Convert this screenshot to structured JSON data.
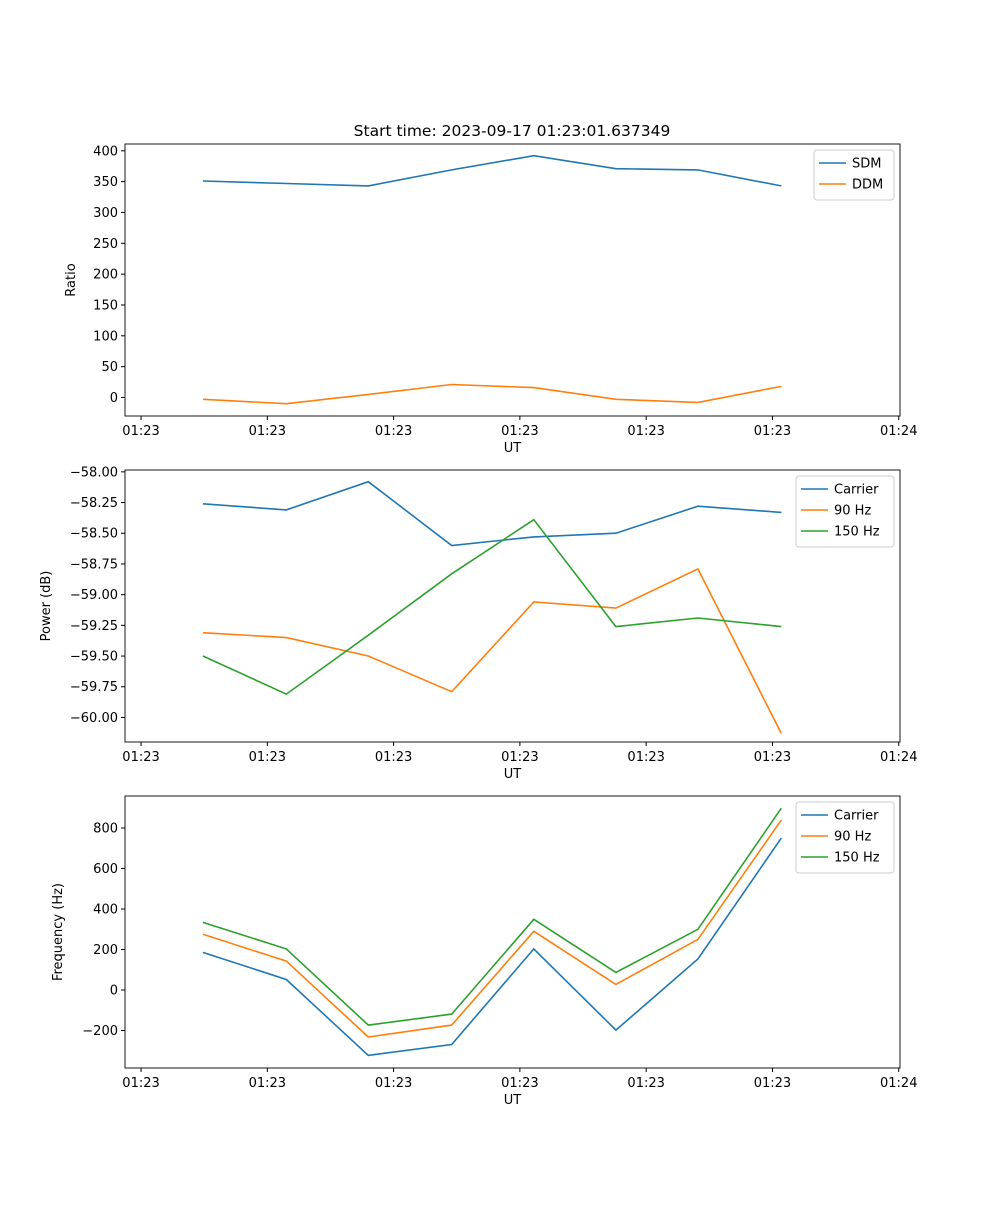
{
  "chart_data": [
    {
      "type": "line",
      "title": "Start time: 2023-09-17 01:23:01.637349",
      "xlabel": "UT",
      "ylabel": "Ratio",
      "x_unit": "seconds after 01:23:00",
      "x": [
        4.9,
        11.5,
        18.0,
        24.6,
        31.1,
        37.6,
        44.1,
        50.7
      ],
      "xlim": [
        -1.27,
        60.1
      ],
      "xticks": [
        0,
        10,
        20,
        30,
        40,
        50,
        60
      ],
      "xtick_labels": [
        "01:23",
        "01:23",
        "01:23",
        "01:23",
        "01:23",
        "01:23",
        "01:24"
      ],
      "ylim": [
        -30,
        411
      ],
      "yticks": [
        0,
        50,
        100,
        150,
        200,
        250,
        300,
        350,
        400
      ],
      "ytick_labels": [
        "0",
        "50",
        "100",
        "150",
        "200",
        "250",
        "300",
        "350",
        "400"
      ],
      "legend": "top-right",
      "series": [
        {
          "name": "SDM",
          "color": "#1f77b4",
          "values": [
            351,
            347,
            343,
            369,
            392,
            371,
            369,
            343
          ]
        },
        {
          "name": "DDM",
          "color": "#ff7f0e",
          "values": [
            -3,
            -10,
            5,
            21,
            16,
            -3,
            -8,
            18
          ]
        }
      ]
    },
    {
      "type": "line",
      "xlabel": "UT",
      "ylabel": "Power (dB)",
      "x": [
        4.9,
        11.5,
        18.0,
        24.6,
        31.1,
        37.6,
        44.1,
        50.7
      ],
      "xlim": [
        -1.27,
        60.1
      ],
      "xticks": [
        0,
        10,
        20,
        30,
        40,
        50,
        60
      ],
      "xtick_labels": [
        "01:23",
        "01:23",
        "01:23",
        "01:23",
        "01:23",
        "01:23",
        "01:24"
      ],
      "ylim": [
        -60.2,
        -57.985
      ],
      "yticks": [
        -60.0,
        -59.75,
        -59.5,
        -59.25,
        -59.0,
        -58.75,
        -58.5,
        -58.25,
        -58.0
      ],
      "ytick_labels": [
        "−60.00",
        "−59.75",
        "−59.50",
        "−59.25",
        "−59.00",
        "−58.75",
        "−58.50",
        "−58.25",
        "−58.00"
      ],
      "legend": "top-right",
      "series": [
        {
          "name": "Carrier",
          "color": "#1f77b4",
          "values": [
            -58.26,
            -58.31,
            -58.08,
            -58.6,
            -58.53,
            -58.5,
            -58.28,
            -58.33
          ]
        },
        {
          "name": "90 Hz",
          "color": "#ff7f0e",
          "values": [
            -59.31,
            -59.35,
            -59.5,
            -59.79,
            -59.06,
            -59.11,
            -58.79,
            -60.13
          ]
        },
        {
          "name": "150 Hz",
          "color": "#2ca02c",
          "values": [
            -59.5,
            -59.81,
            -59.33,
            -58.83,
            -58.39,
            -59.26,
            -59.19,
            -59.26
          ]
        }
      ]
    },
    {
      "type": "line",
      "xlabel": "UT",
      "ylabel": "Frequency (Hz)",
      "x": [
        4.9,
        11.5,
        18.0,
        24.6,
        31.1,
        37.6,
        44.1,
        50.7
      ],
      "xlim": [
        -1.27,
        60.1
      ],
      "xticks": [
        0,
        10,
        20,
        30,
        40,
        50,
        60
      ],
      "xtick_labels": [
        "01:23",
        "01:23",
        "01:23",
        "01:23",
        "01:23",
        "01:23",
        "01:24"
      ],
      "ylim": [
        -385,
        958
      ],
      "yticks": [
        -200,
        0,
        200,
        400,
        600,
        800
      ],
      "ytick_labels": [
        "−200",
        "0",
        "200",
        "400",
        "600",
        "800"
      ],
      "legend": "top-right",
      "series": [
        {
          "name": "Carrier",
          "color": "#1f77b4",
          "values": [
            186,
            52,
            -323,
            -269,
            203,
            -198,
            153,
            750
          ]
        },
        {
          "name": "90 Hz",
          "color": "#ff7f0e",
          "values": [
            275,
            143,
            -232,
            -173,
            290,
            28,
            250,
            839
          ]
        },
        {
          "name": "150 Hz",
          "color": "#2ca02c",
          "values": [
            334,
            203,
            -173,
            -119,
            349,
            87,
            300,
            898
          ]
        }
      ]
    }
  ]
}
